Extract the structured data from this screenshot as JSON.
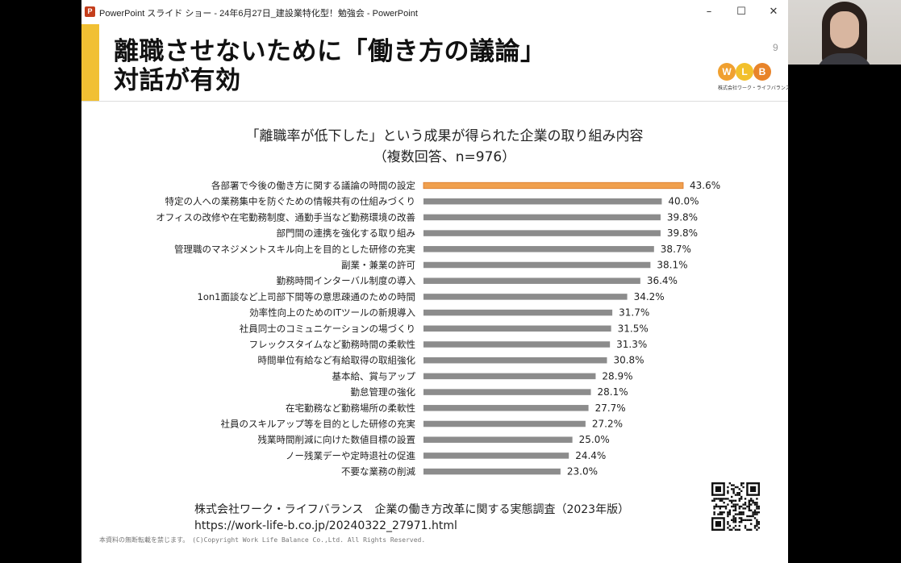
{
  "window": {
    "title": "PowerPoint スライド ショー  -  24年6月27日_建設業特化型！勉強会 - PowerPoint",
    "app_icon": "P",
    "minimize": "–",
    "maximize": "☐",
    "close": "✕"
  },
  "slide": {
    "title_line1": "離職させないために「働き方の議論」",
    "title_line2": "対話が有効",
    "number": "9",
    "logo": {
      "letters": [
        "W",
        "L",
        "B"
      ],
      "colors": [
        "#f0a030",
        "#f2c02c",
        "#e8842a"
      ],
      "text": "株式会社ワーク・ライフバランス"
    },
    "source_line1": "株式会社ワーク・ライフバランス　企業の働き方改革に関する実態調査（2023年版）",
    "source_line2": "https://work-life-b.co.jp/20240322_27971.html",
    "copyright": "本資料の無断転載を禁じます。　(C)Copyright  Work Life Balance Co.,Ltd. All Rights Reserved."
  },
  "chart_data": {
    "type": "bar",
    "orientation": "horizontal",
    "title": "「離職率が低下した」という成果が得られた企業の取り組み内容",
    "subtitle": "（複数回答、n=976）",
    "categories": [
      "各部署で今後の働き方に関する議論の時間の設定",
      "特定の人への業務集中を防ぐための情報共有の仕組みづくり",
      "オフィスの改修や在宅勤務制度、通勤手当など勤務環境の改善",
      "部門間の連携を強化する取り組み",
      "管理職のマネジメントスキル向上を目的とした研修の充実",
      "副業・兼業の許可",
      "勤務時間インターバル制度の導入",
      "1on1面談など上司部下間等の意思疎通のための時間",
      "効率性向上のためのITツールの新規導入",
      "社員同士のコミュニケーションの場づくり",
      "フレックスタイムなど勤務時間の柔軟性",
      "時間単位有給など有給取得の取組強化",
      "基本給、賞与アップ",
      "勤怠管理の強化",
      "在宅勤務など勤務場所の柔軟性",
      "社員のスキルアップ等を目的とした研修の充実",
      "残業時間削減に向けた数値目標の設置",
      "ノー残業デーや定時退社の促進",
      "不要な業務の削減"
    ],
    "values": [
      43.6,
      40.0,
      39.8,
      39.8,
      38.7,
      38.1,
      36.4,
      34.2,
      31.7,
      31.5,
      31.3,
      30.8,
      28.9,
      28.1,
      27.7,
      27.2,
      25.0,
      24.4,
      23.0
    ],
    "value_labels": [
      "43.6%",
      "40.0%",
      "39.8%",
      "39.8%",
      "38.7%",
      "38.1%",
      "36.4%",
      "34.2%",
      "31.7%",
      "31.5%",
      "31.3%",
      "30.8%",
      "28.9%",
      "28.1%",
      "27.7%",
      "27.2%",
      "25.0%",
      "24.4%",
      "23.0%"
    ],
    "highlight_index": 0,
    "colors": {
      "highlight": "#f0a04e",
      "default": "#8c8c8c"
    },
    "xlim": [
      0,
      50
    ],
    "grid": false,
    "legend": "none"
  },
  "icons": {
    "qr": "qr-code-icon",
    "webcam": "webcam-person-image"
  }
}
